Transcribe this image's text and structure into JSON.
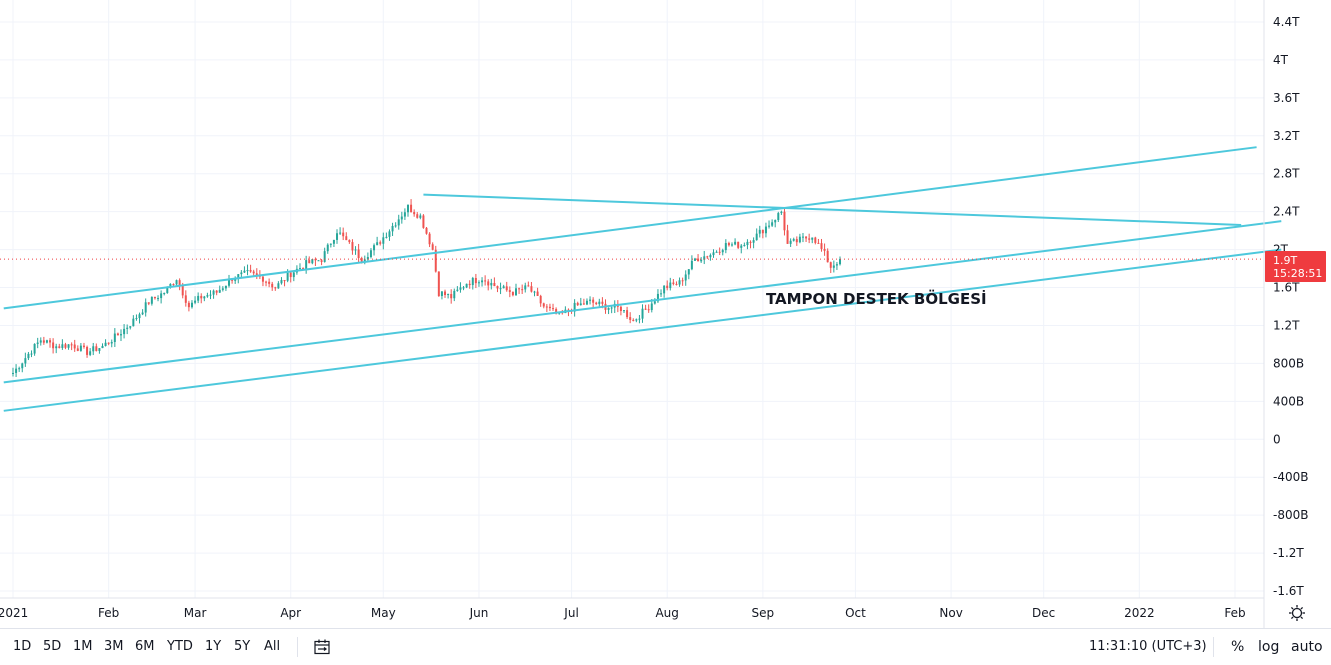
{
  "chart_data": {
    "type": "candlestick",
    "title": "",
    "y_unit_ticks": [
      "4.4T",
      "4T",
      "3.6T",
      "3.2T",
      "2.8T",
      "2.4T",
      "2T",
      "1.6T",
      "1.2T",
      "800B",
      "400B",
      "0",
      "-400B",
      "-800B",
      "-1.2T",
      "-1.6T"
    ],
    "y_tick_values": [
      4.4,
      4.0,
      3.6,
      3.2,
      2.8,
      2.4,
      2.0,
      1.6,
      1.2,
      0.8,
      0.4,
      0,
      -0.4,
      -0.8,
      -1.2,
      -1.6
    ],
    "ylim": [
      -1.6,
      4.4
    ],
    "x_tick_labels": [
      "2021",
      "Feb",
      "Mar",
      "Apr",
      "May",
      "Jun",
      "Jul",
      "Aug",
      "Sep",
      "Oct",
      "Nov",
      "Dec",
      "2022",
      "Feb"
    ],
    "x_tick_dates": [
      "2021-01-01",
      "2021-02-01",
      "2021-03-01",
      "2021-04-01",
      "2021-05-01",
      "2021-06-01",
      "2021-07-01",
      "2021-08-01",
      "2021-09-01",
      "2021-10-01",
      "2021-11-01",
      "2021-12-01",
      "2022-01-01",
      "2022-02-01"
    ],
    "xlim": [
      "2021-01-01",
      "2022-02-15"
    ],
    "series_anchor_close": [
      [
        "2021-01-01",
        0.7
      ],
      [
        "2021-01-06",
        0.9
      ],
      [
        "2021-01-10",
        1.05
      ],
      [
        "2021-01-15",
        0.98
      ],
      [
        "2021-01-20",
        1.0
      ],
      [
        "2021-01-25",
        0.92
      ],
      [
        "2021-01-30",
        0.98
      ],
      [
        "2021-02-04",
        1.1
      ],
      [
        "2021-02-09",
        1.25
      ],
      [
        "2021-02-14",
        1.45
      ],
      [
        "2021-02-19",
        1.55
      ],
      [
        "2021-02-23",
        1.7
      ],
      [
        "2021-02-27",
        1.4
      ],
      [
        "2021-03-03",
        1.5
      ],
      [
        "2021-03-08",
        1.55
      ],
      [
        "2021-03-13",
        1.7
      ],
      [
        "2021-03-18",
        1.75
      ],
      [
        "2021-03-23",
        1.7
      ],
      [
        "2021-03-27",
        1.6
      ],
      [
        "2021-04-01",
        1.75
      ],
      [
        "2021-04-06",
        1.85
      ],
      [
        "2021-04-11",
        1.9
      ],
      [
        "2021-04-16",
        2.2
      ],
      [
        "2021-04-20",
        2.05
      ],
      [
        "2021-04-24",
        1.9
      ],
      [
        "2021-04-29",
        2.05
      ],
      [
        "2021-05-04",
        2.25
      ],
      [
        "2021-05-09",
        2.45
      ],
      [
        "2021-05-13",
        2.35
      ],
      [
        "2021-05-17",
        2.0
      ],
      [
        "2021-05-19",
        1.55
      ],
      [
        "2021-05-23",
        1.5
      ],
      [
        "2021-05-28",
        1.65
      ],
      [
        "2021-06-02",
        1.7
      ],
      [
        "2021-06-07",
        1.6
      ],
      [
        "2021-06-12",
        1.55
      ],
      [
        "2021-06-17",
        1.6
      ],
      [
        "2021-06-22",
        1.4
      ],
      [
        "2021-06-27",
        1.3
      ],
      [
        "2021-07-02",
        1.4
      ],
      [
        "2021-07-07",
        1.45
      ],
      [
        "2021-07-12",
        1.4
      ],
      [
        "2021-07-17",
        1.38
      ],
      [
        "2021-07-21",
        1.25
      ],
      [
        "2021-07-26",
        1.4
      ],
      [
        "2021-07-31",
        1.6
      ],
      [
        "2021-08-05",
        1.65
      ],
      [
        "2021-08-10",
        1.9
      ],
      [
        "2021-08-15",
        1.95
      ],
      [
        "2021-08-20",
        2.05
      ],
      [
        "2021-08-25",
        2.05
      ],
      [
        "2021-08-30",
        2.15
      ],
      [
        "2021-09-04",
        2.3
      ],
      [
        "2021-09-07",
        2.4
      ],
      [
        "2021-09-09",
        2.05
      ],
      [
        "2021-09-13",
        2.1
      ],
      [
        "2021-09-17",
        2.15
      ],
      [
        "2021-09-21",
        1.95
      ],
      [
        "2021-09-23",
        1.82
      ],
      [
        "2021-09-26",
        1.9
      ]
    ],
    "current_price_label": "1.9T",
    "current_price_value": 1.9,
    "countdown": "15:28:51",
    "trendlines": [
      {
        "from": [
          "2020-12-29",
          1.38
        ],
        "to": [
          "2022-02-08",
          3.08
        ]
      },
      {
        "from": [
          "2020-12-29",
          0.6
        ],
        "to": [
          "2022-02-16",
          2.3
        ]
      },
      {
        "from": [
          "2020-12-29",
          0.3
        ],
        "to": [
          "2022-02-16",
          2.0
        ]
      },
      {
        "from": [
          "2021-05-14",
          2.58
        ],
        "to": [
          "2022-02-03",
          2.26
        ]
      }
    ],
    "annotation": {
      "text": "TAMPON DESTEK BÖLGESİ",
      "date": "2021-09-02",
      "value": 1.48
    },
    "up_color": "#26a69a",
    "down_color": "#ef5350",
    "trendline_color": "#4dc8dc",
    "price_badge_color": "#ef3b3f",
    "grid": true
  },
  "toolbar": {
    "ranges": [
      "1D",
      "5D",
      "1M",
      "3M",
      "6M",
      "YTD",
      "1Y",
      "5Y",
      "All"
    ],
    "timezone": "11:31:10 (UTC+3)",
    "percent": "%",
    "log": "log",
    "auto": "auto"
  },
  "icons": {
    "date_range": "calendar-range-icon",
    "settings": "gear-icon"
  }
}
